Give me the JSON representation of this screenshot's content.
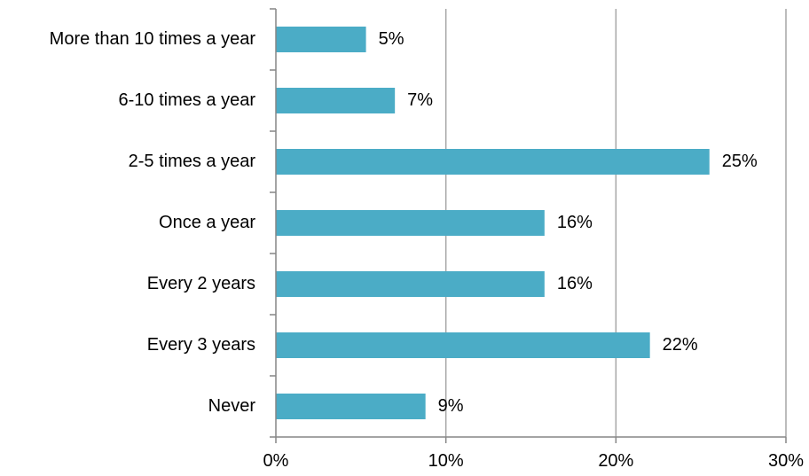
{
  "chart_data": {
    "type": "bar",
    "orientation": "horizontal",
    "categories": [
      "More than 10 times a year",
      "6-10 times a year",
      "2-5 times a year",
      "Once a year",
      "Every 2 years",
      "Every 3 years",
      "Never"
    ],
    "values": [
      5.3,
      7.0,
      25.5,
      15.8,
      15.8,
      22.0,
      8.8
    ],
    "data_labels": [
      "5%",
      "7%",
      "25%",
      "16%",
      "16%",
      "22%",
      "9%"
    ],
    "xlim": [
      0,
      30
    ],
    "x_ticks": [
      0,
      10,
      20,
      30
    ],
    "x_tick_labels": [
      "0%",
      "10%",
      "20%",
      "30%"
    ],
    "title": "",
    "xlabel": "",
    "ylabel": "",
    "grid": "vertical",
    "legend": "none",
    "bar_color": "#4BACC6",
    "grid_color": "#A6A6A6",
    "axis_color": "#868686"
  }
}
